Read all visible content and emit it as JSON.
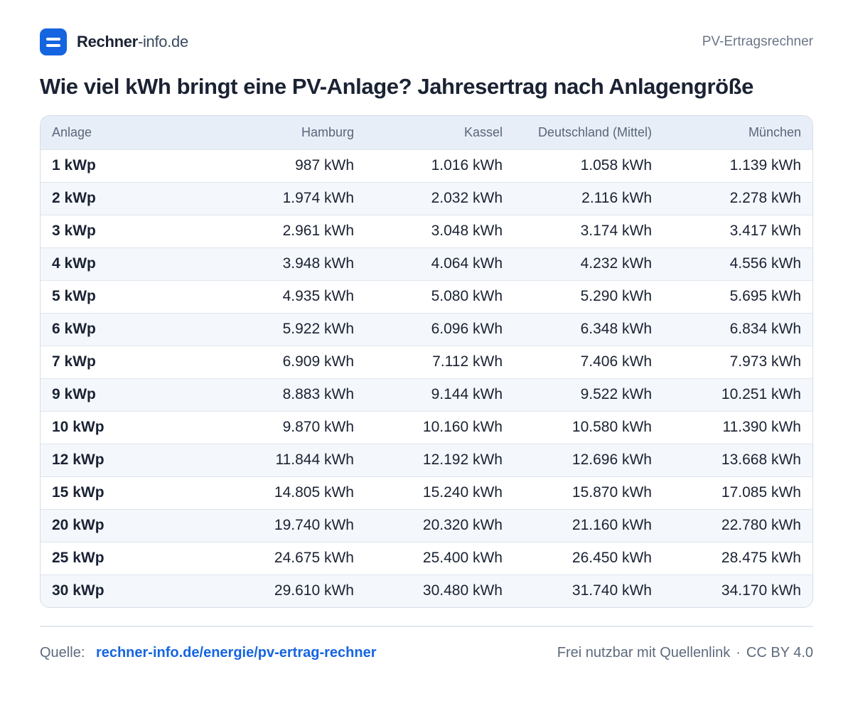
{
  "header": {
    "brand_strong": "Rechner",
    "brand_light": "-info.de",
    "page_tag": "PV-Ertragsrechner"
  },
  "title": "Wie viel kWh bringt eine PV-Anlage? Jahresertrag nach Anlagengröße",
  "table": {
    "columns": [
      "Anlage",
      "Hamburg",
      "Kassel",
      "Deutschland (Mittel)",
      "München"
    ],
    "rows": [
      [
        "1 kWp",
        "987 kWh",
        "1.016 kWh",
        "1.058 kWh",
        "1.139 kWh"
      ],
      [
        "2 kWp",
        "1.974 kWh",
        "2.032 kWh",
        "2.116 kWh",
        "2.278 kWh"
      ],
      [
        "3 kWp",
        "2.961 kWh",
        "3.048 kWh",
        "3.174 kWh",
        "3.417 kWh"
      ],
      [
        "4 kWp",
        "3.948 kWh",
        "4.064 kWh",
        "4.232 kWh",
        "4.556 kWh"
      ],
      [
        "5 kWp",
        "4.935 kWh",
        "5.080 kWh",
        "5.290 kWh",
        "5.695 kWh"
      ],
      [
        "6 kWp",
        "5.922 kWh",
        "6.096 kWh",
        "6.348 kWh",
        "6.834 kWh"
      ],
      [
        "7 kWp",
        "6.909 kWh",
        "7.112 kWh",
        "7.406 kWh",
        "7.973 kWh"
      ],
      [
        "9 kWp",
        "8.883 kWh",
        "9.144 kWh",
        "9.522 kWh",
        "10.251 kWh"
      ],
      [
        "10 kWp",
        "9.870 kWh",
        "10.160 kWh",
        "10.580 kWh",
        "11.390 kWh"
      ],
      [
        "12 kWp",
        "11.844 kWh",
        "12.192 kWh",
        "12.696 kWh",
        "13.668 kWh"
      ],
      [
        "15 kWp",
        "14.805 kWh",
        "15.240 kWh",
        "15.870 kWh",
        "17.085 kWh"
      ],
      [
        "20 kWp",
        "19.740 kWh",
        "20.320 kWh",
        "21.160 kWh",
        "22.780 kWh"
      ],
      [
        "25 kWp",
        "24.675 kWh",
        "25.400 kWh",
        "26.450 kWh",
        "28.475 kWh"
      ],
      [
        "30 kWp",
        "29.610 kWh",
        "30.480 kWh",
        "31.740 kWh",
        "34.170 kWh"
      ]
    ]
  },
  "footer": {
    "source_label": "Quelle:",
    "source_link": "rechner-info.de/energie/pv-ertrag-rechner",
    "license_text": "Frei nutzbar mit Quellenlink",
    "separator": "·",
    "license_name": "CC BY 4.0"
  },
  "colors": {
    "accent": "#1565e0",
    "header_row": "#e8eef7",
    "zebra_row": "#f4f7fb",
    "text": "#1a2233",
    "muted": "#5d6a7d"
  },
  "icons": {
    "logo": "menu-lines-icon"
  }
}
